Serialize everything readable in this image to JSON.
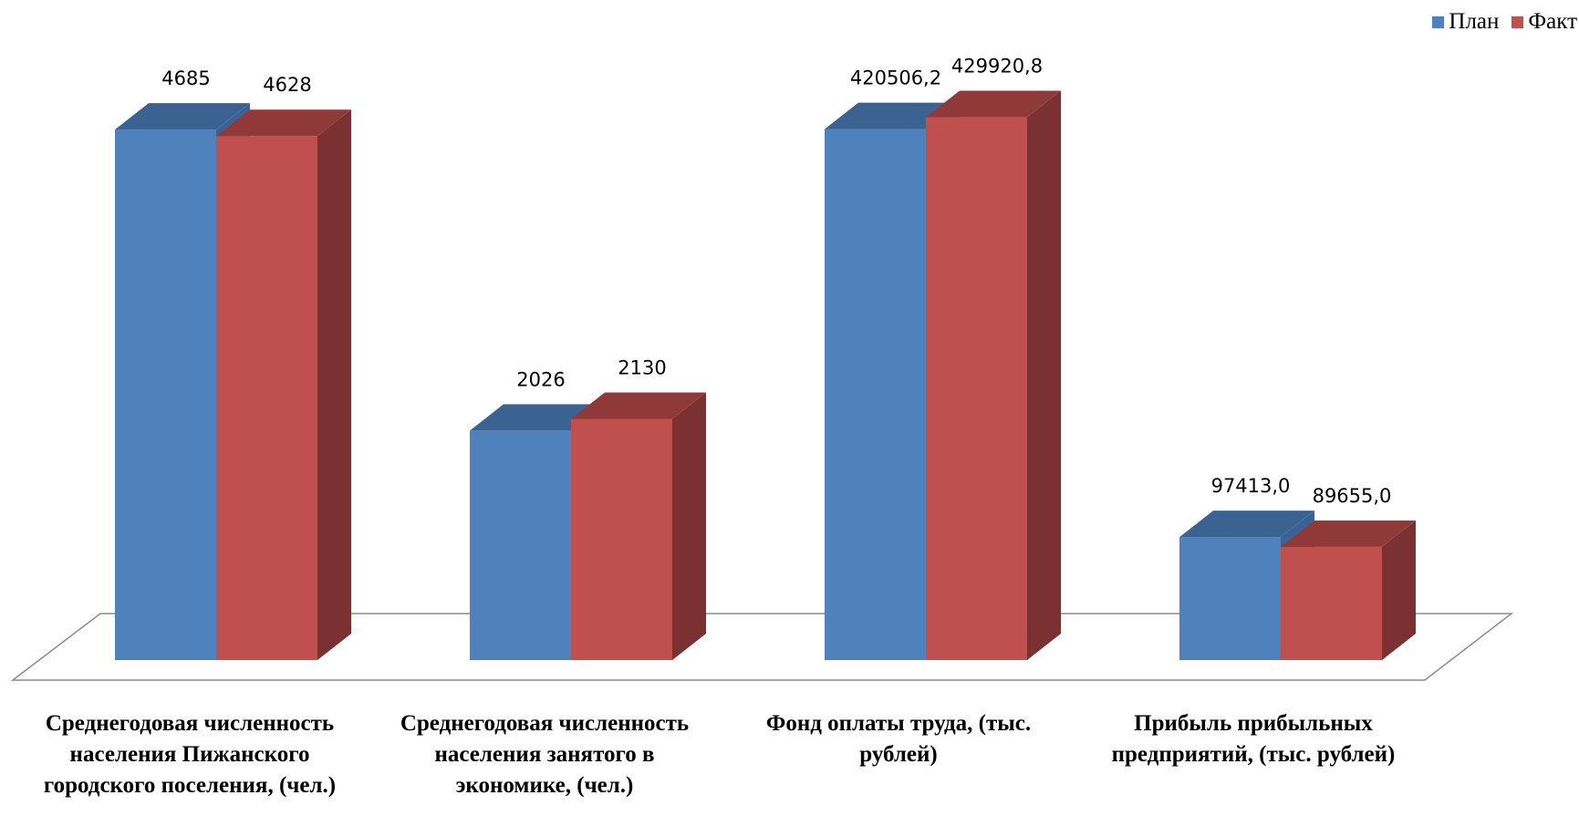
{
  "chart_data": {
    "type": "bar",
    "title": "",
    "categories": [
      "Среднегодовая численность населения Пижанского городского поселения, (чел.)",
      "Среднегодовая численность населения занятого в экономике, (чел.)",
      "Фонд оплаты труда, (тыс. рублей)",
      "Прибыль прибыльных предприятий, (тыс. рублей)"
    ],
    "series": [
      {
        "name": "План",
        "color": "#4F81BD",
        "values": [
          4685,
          2026,
          420506.2,
          97413.0
        ],
        "labels": [
          "4685",
          "2026",
          "420506,2",
          "97413,0"
        ]
      },
      {
        "name": "Факт",
        "color": "#C0504D",
        "values": [
          4628,
          2130,
          429920.8,
          89655.0
        ],
        "labels": [
          "4628",
          "2130",
          "429920,8",
          "89655,0"
        ]
      }
    ],
    "axis_scale": "independent per category",
    "legend_position": "top-right",
    "grid": false,
    "style": "3d-clustered-column"
  }
}
